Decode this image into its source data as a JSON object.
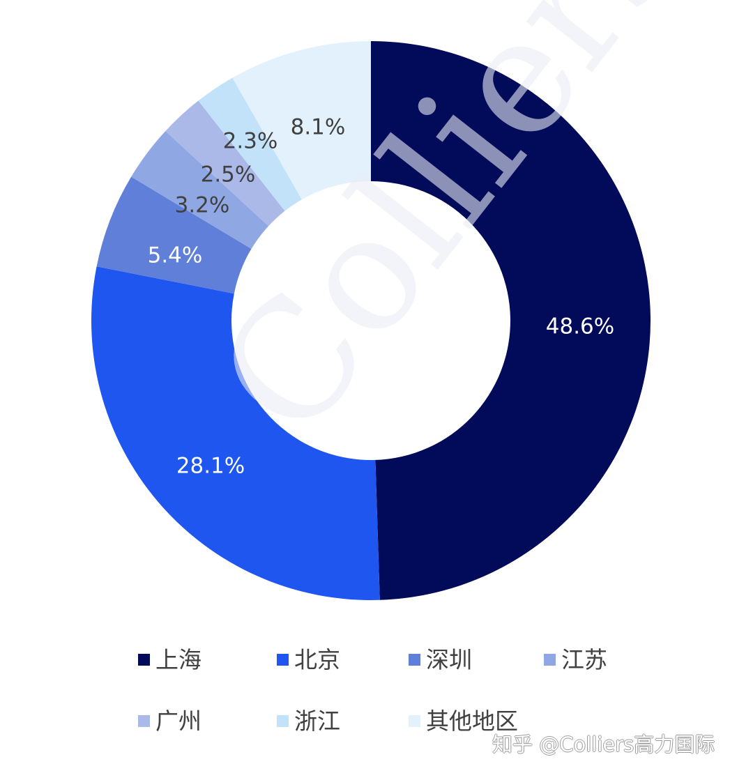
{
  "chart_data": {
    "type": "pie",
    "subtype": "donut",
    "title": "",
    "categories": [
      "上海",
      "北京",
      "深圳",
      "江苏",
      "广州",
      "浙江",
      "其他地区"
    ],
    "values": [
      48.6,
      28.1,
      5.4,
      3.2,
      2.5,
      2.3,
      8.1
    ],
    "value_labels": [
      "48.6%",
      "28.1%",
      "5.4%",
      "3.2%",
      "2.5%",
      "2.3%",
      "8.1%"
    ],
    "colors": [
      "#020a5a",
      "#1f56f0",
      "#5f7fd9",
      "#8fa7e3",
      "#abb9e8",
      "#c2e2f9",
      "#e2f1fb"
    ],
    "label_colors": [
      "#ffffff",
      "#ffffff",
      "#ffffff",
      "#404040",
      "#404040",
      "#404040",
      "#404040"
    ],
    "start_angle": "12 o'clock",
    "direction": "clockwise",
    "legend_position": "bottom",
    "legend": [
      "上海",
      "北京",
      "深圳",
      "江苏",
      "广州",
      "浙江",
      "其他地区"
    ]
  },
  "legend": {
    "items": [
      {
        "label": "上海",
        "color": "#020a5a"
      },
      {
        "label": "北京",
        "color": "#1f56f0"
      },
      {
        "label": "深圳",
        "color": "#5f7fd9"
      },
      {
        "label": "江苏",
        "color": "#8fa7e3"
      },
      {
        "label": "广州",
        "color": "#abb9e8"
      },
      {
        "label": "浙江",
        "color": "#c2e2f9"
      },
      {
        "label": "其他地区",
        "color": "#e2f1fb"
      }
    ]
  },
  "watermark": {
    "text": "Colliers"
  },
  "attribution": {
    "text": "知乎 @Colliers高力国际"
  }
}
